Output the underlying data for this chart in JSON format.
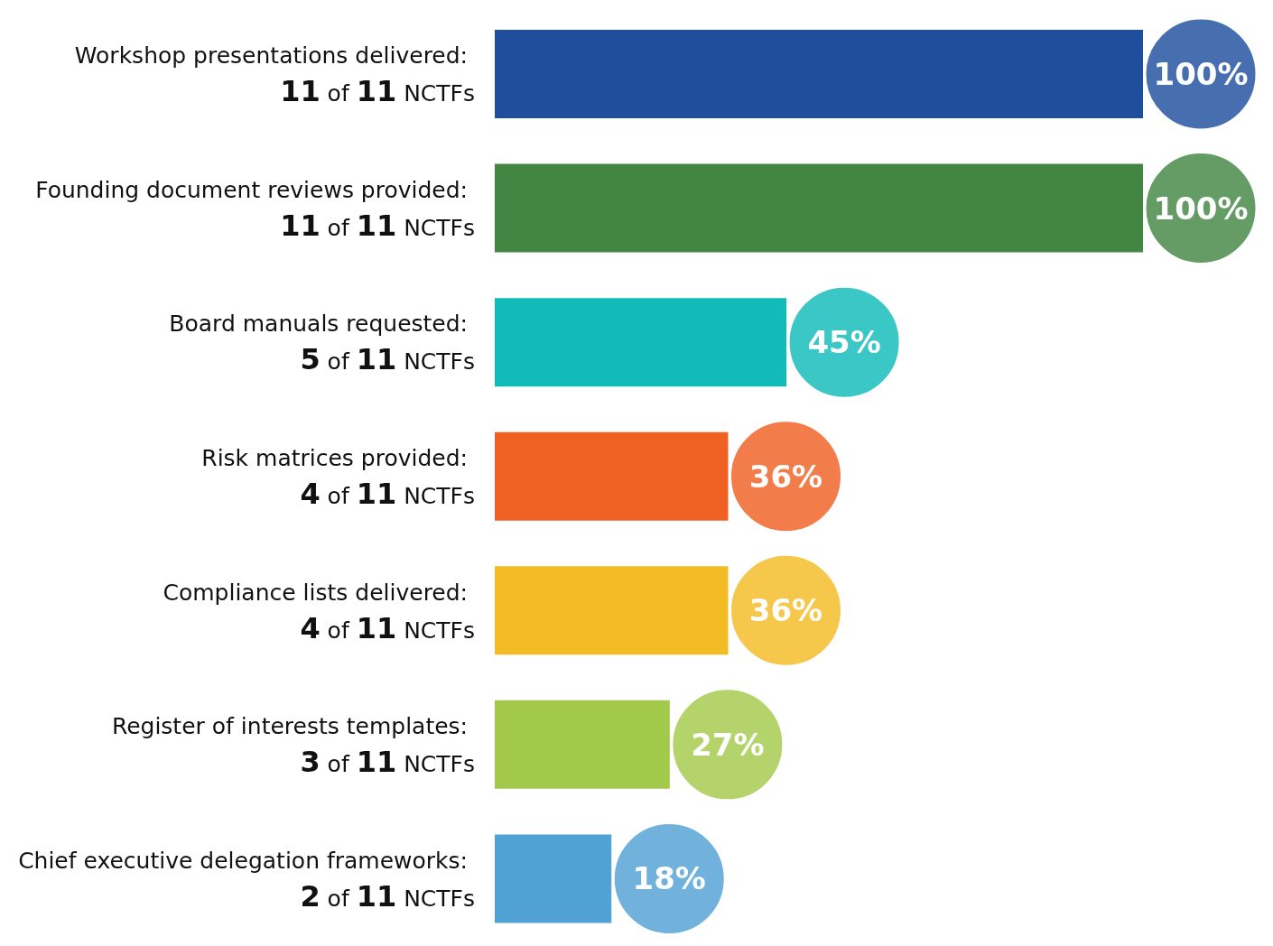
{
  "chart_data": {
    "type": "bar",
    "orientation": "horizontal",
    "categories": [
      "Workshop presentations delivered: 11 of 11 NCTFs",
      "Founding document reviews provided: 11 of 11 NCTFs",
      "Board manuals requested: 5 of 11 NCTFs",
      "Risk matrices provided: 4 of 11 NCTFs",
      "Compliance lists delivered: 4 of 11 NCTFs",
      "Register of interests templates: 3 of 11 NCTFs",
      "Chief executive delegation frameworks: 2 of 11 NCTFs"
    ],
    "values": [
      100,
      100,
      45,
      36,
      36,
      27,
      18
    ],
    "colors": [
      "#1f4e9c",
      "#438644",
      "#10bbb8",
      "#f06022",
      "#f3bb24",
      "#a3c94a",
      "#50a1d4"
    ],
    "value_labels": [
      "100%",
      "100%",
      "45%",
      "36%",
      "36%",
      "27%",
      "18%"
    ]
  }
}
